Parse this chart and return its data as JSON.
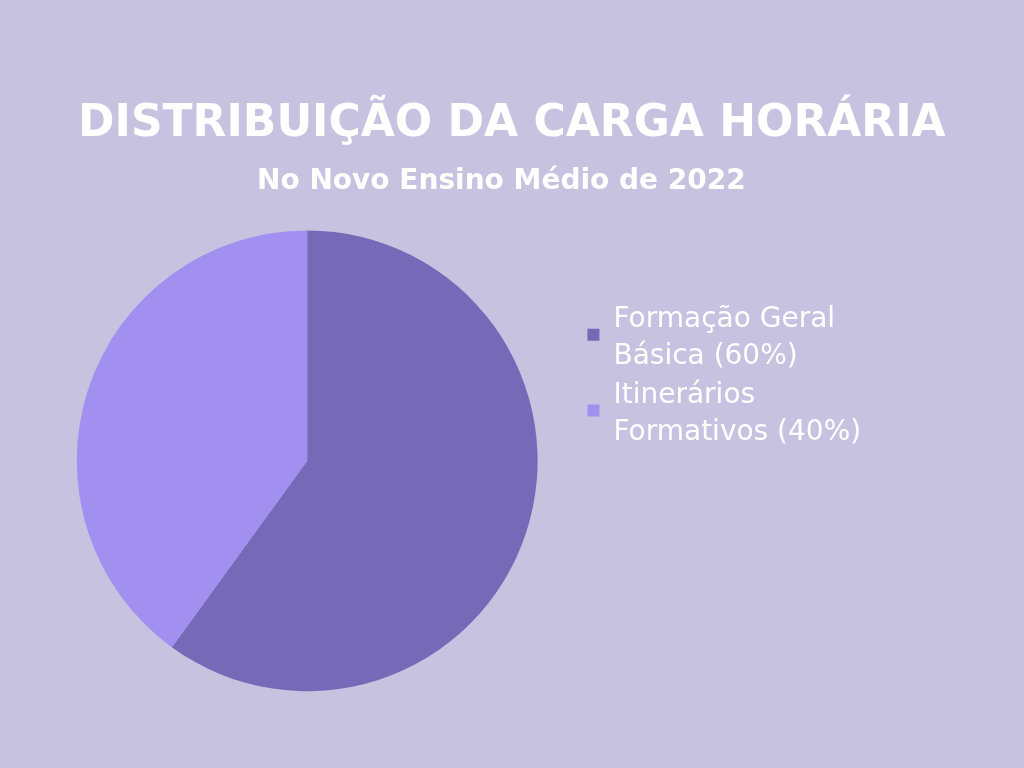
{
  "chart_data": {
    "type": "pie",
    "title": "DISTRIBUIÇÃO DA CARGA HORÁRIA",
    "subtitle": "No Novo Ensino Médio de 2022",
    "categories": [
      "Formação Geral Básica (60%)",
      "Itinerários Formativos (40%)"
    ],
    "values": [
      60,
      40
    ],
    "colors": [
      "#7569b8",
      "#a190f0"
    ],
    "legend": "right"
  }
}
